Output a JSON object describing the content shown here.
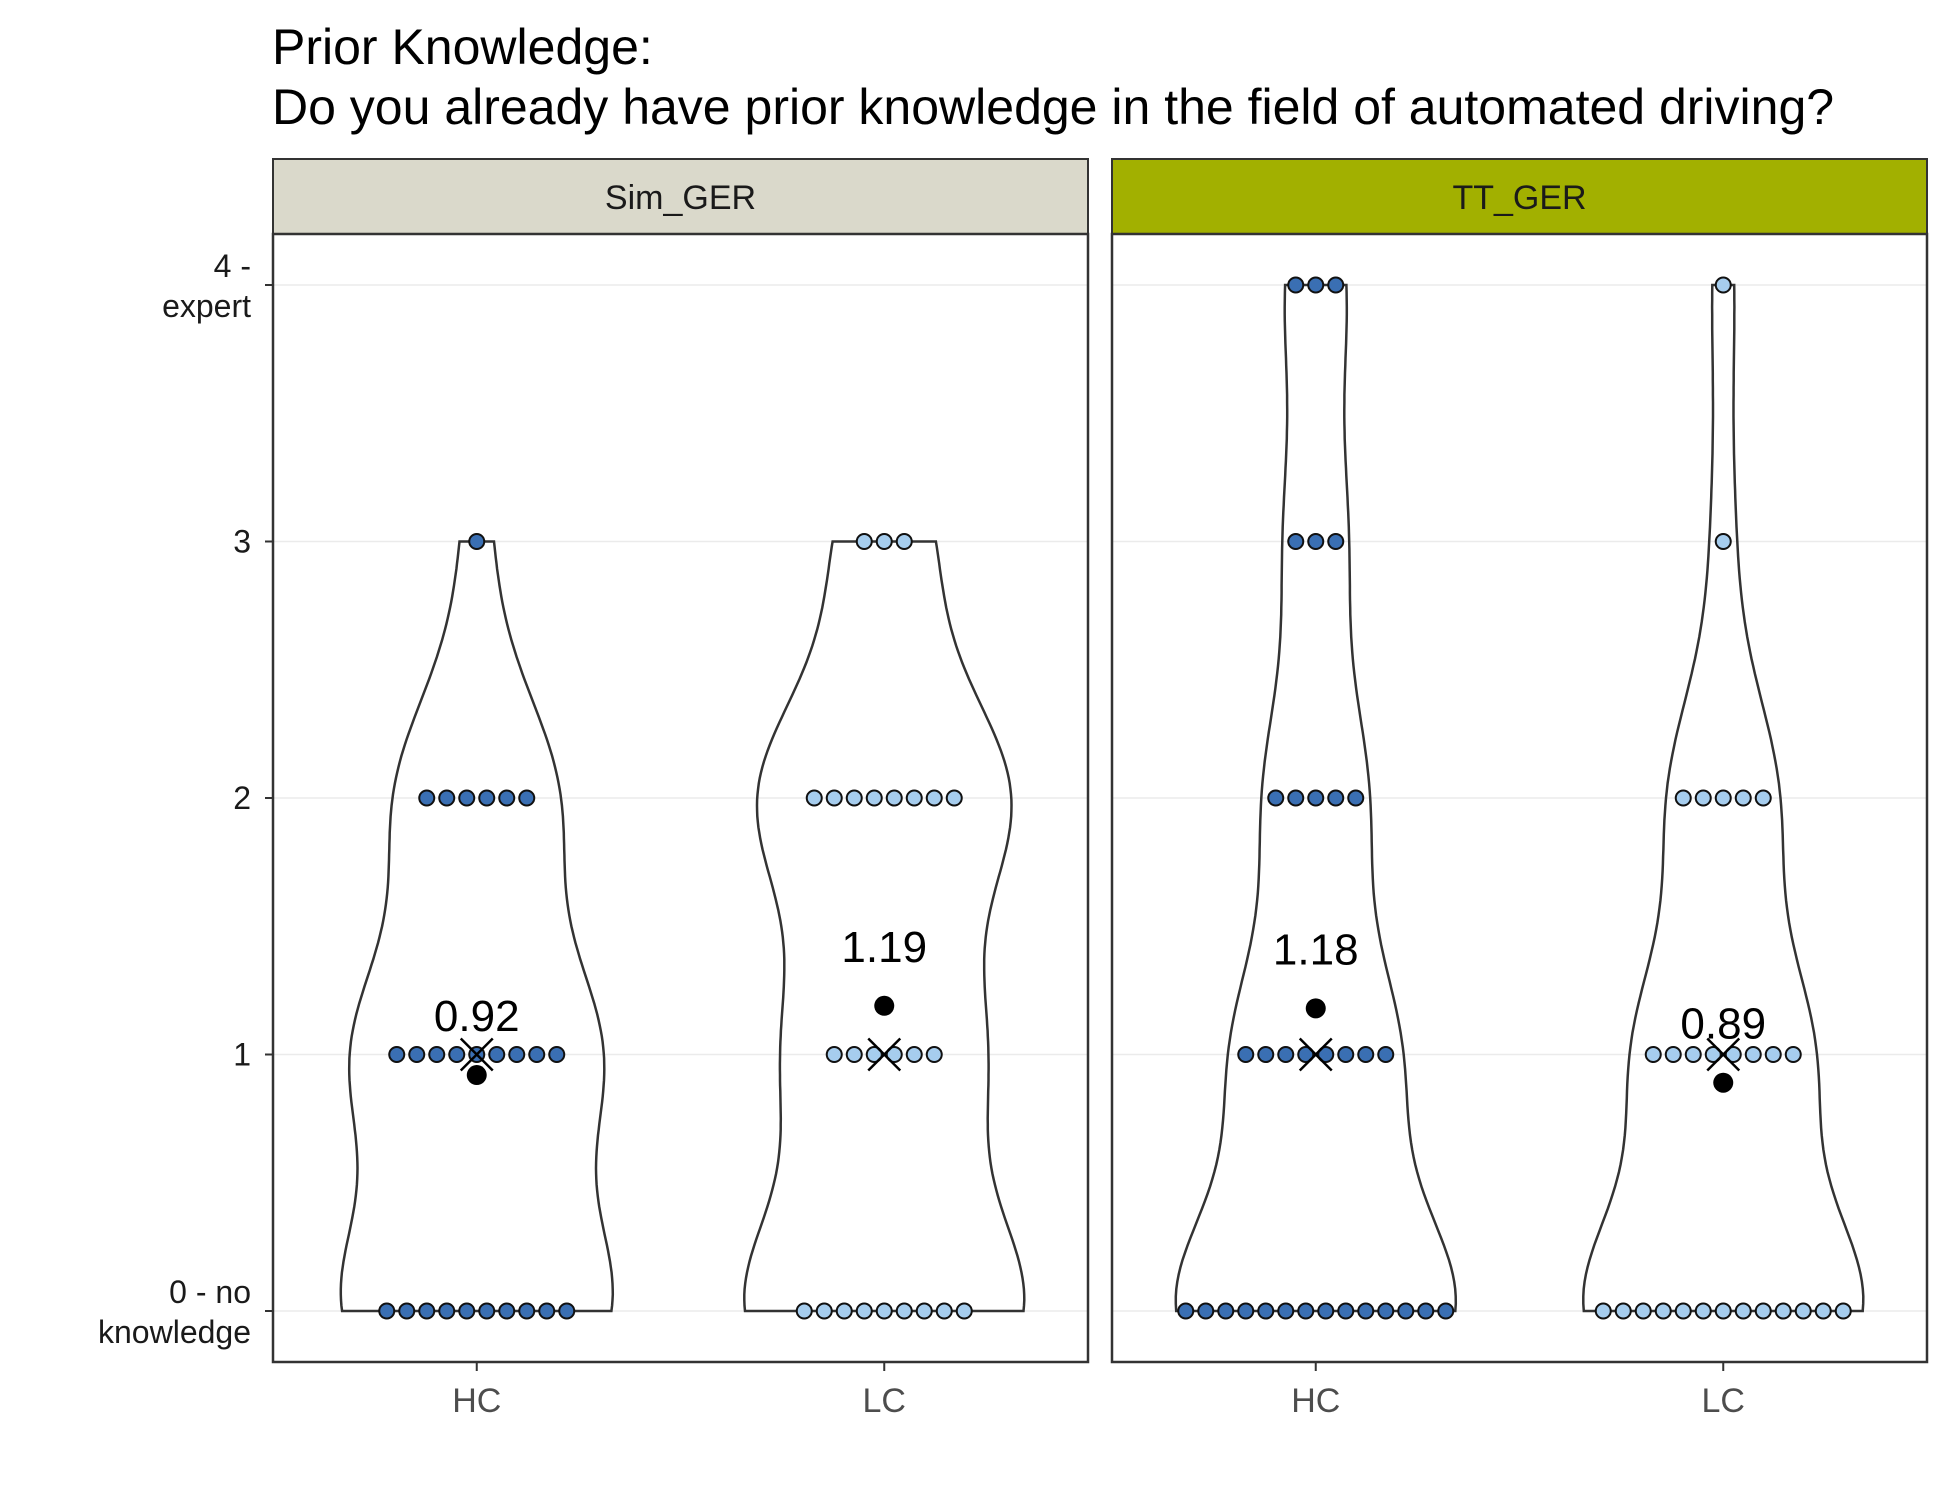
{
  "chart_data": {
    "type": "violin",
    "title_line1": "Prior Knowledge:",
    "title_line2": "Do you already have prior knowledge in the field of automated driving?",
    "categories": [
      "HC",
      "LC"
    ],
    "ylim": [
      -0.2,
      4.2
    ],
    "y_ticks": [
      {
        "value": 0,
        "label": [
          "0 - no",
          "knowledge"
        ]
      },
      {
        "value": 1,
        "label": [
          "1"
        ]
      },
      {
        "value": 2,
        "label": [
          "2"
        ]
      },
      {
        "value": 3,
        "label": [
          "3"
        ]
      },
      {
        "value": 4,
        "label": [
          "4 -",
          "expert"
        ]
      }
    ],
    "grid": true,
    "colors": {
      "HC": "#3a6fb3",
      "LC": "#a6cdee",
      "Sim_GER_strip": "#dad9cb",
      "TT_GER_strip": "#a2b000"
    },
    "facets": [
      {
        "name": "Sim_GER",
        "groups": [
          {
            "category": "HC",
            "counts": {
              "0": 10,
              "1": 9,
              "2": 6,
              "3": 1,
              "4": 0
            },
            "mean": 0.92,
            "mean_label": "0.92",
            "median": 1,
            "max_halfwidth": 3.4
          },
          {
            "category": "LC",
            "counts": {
              "0": 9,
              "1": 6,
              "2": 8,
              "3": 3,
              "4": 0
            },
            "mean": 1.19,
            "mean_label": "1.19",
            "median": 1,
            "max_halfwidth": 3.5
          }
        ]
      },
      {
        "name": "TT_GER",
        "groups": [
          {
            "category": "HC",
            "counts": {
              "0": 14,
              "1": 8,
              "2": 5,
              "3": 3,
              "4": 3
            },
            "mean": 1.18,
            "mean_label": "1.18",
            "median": 1,
            "max_halfwidth": 3.5
          },
          {
            "category": "LC",
            "counts": {
              "0": 13,
              "1": 8,
              "2": 5,
              "3": 1,
              "4": 1
            },
            "mean": 0.89,
            "mean_label": "0.89",
            "median": 1,
            "max_halfwidth": 3.5
          }
        ]
      }
    ]
  }
}
